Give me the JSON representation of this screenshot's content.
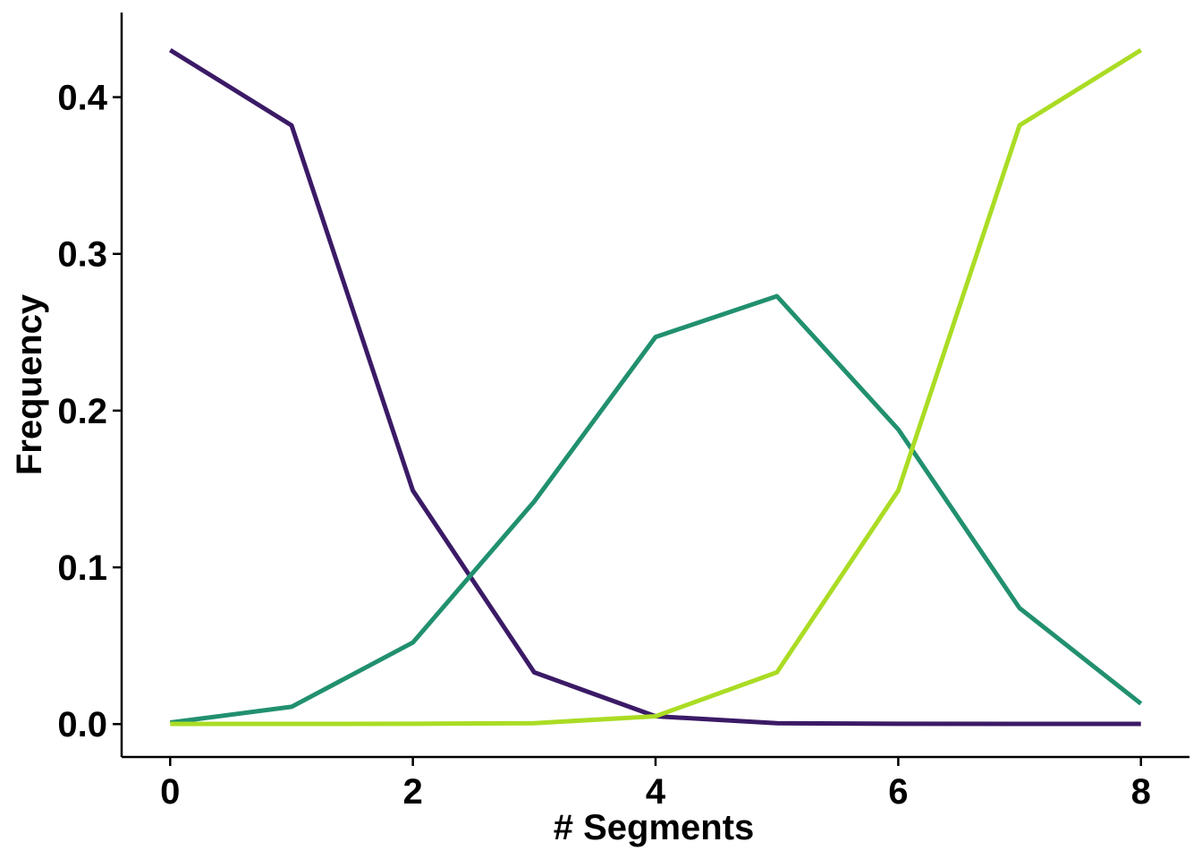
{
  "chart_data": {
    "type": "line",
    "title": "",
    "xlabel": "# Segments",
    "ylabel": "Frequency",
    "xlim": [
      -0.4,
      8.4
    ],
    "ylim": [
      -0.021,
      0.454
    ],
    "x_ticks": [
      0,
      2,
      4,
      6,
      8
    ],
    "y_ticks": [
      0.0,
      0.1,
      0.2,
      0.3,
      0.4
    ],
    "y_tick_labels": [
      "0.0",
      "0.1",
      "0.2",
      "0.3",
      "0.4"
    ],
    "grid": false,
    "legend": "none",
    "x": [
      0,
      1,
      2,
      3,
      4,
      5,
      6,
      7,
      8
    ],
    "series": [
      {
        "color": "#3b1a66",
        "values": [
          0.43,
          0.382,
          0.149,
          0.033,
          0.005,
          0.0005,
          0.0002,
          0.0001,
          0.0001
        ]
      },
      {
        "color": "#21906f",
        "values": [
          0.001,
          0.011,
          0.052,
          0.142,
          0.247,
          0.273,
          0.188,
          0.074,
          0.013
        ]
      },
      {
        "color": "#aadc24",
        "values": [
          0.0001,
          0.0001,
          0.0002,
          0.0006,
          0.005,
          0.033,
          0.149,
          0.382,
          0.43
        ]
      }
    ]
  }
}
